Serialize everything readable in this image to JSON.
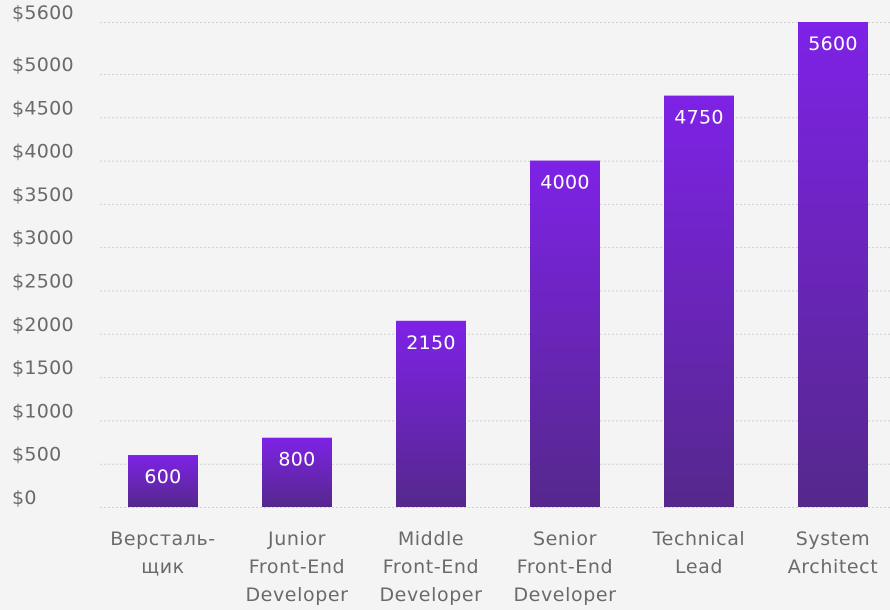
{
  "chart_data": {
    "type": "bar",
    "title": "",
    "xlabel": "",
    "ylabel": "",
    "categories": [
      [
        "Версталь-",
        "щик"
      ],
      [
        "Junior",
        "Front-End",
        "Developer"
      ],
      [
        "Middle",
        "Front-End",
        "Developer"
      ],
      [
        "Senior",
        "Front-End",
        "Developer"
      ],
      [
        "Technical",
        "Lead"
      ],
      [
        "System",
        "Architect"
      ]
    ],
    "values": [
      600,
      800,
      2150,
      4000,
      4750,
      5600
    ],
    "data_labels": [
      "600",
      "800",
      "2150",
      "4000",
      "4750",
      "5600"
    ],
    "ylim": [
      0,
      5600
    ],
    "yticks": [
      0,
      500,
      1000,
      1500,
      2000,
      2500,
      3000,
      3500,
      4000,
      4500,
      5000,
      5600
    ],
    "ytick_labels": [
      "$0",
      "$500",
      "$1000",
      "$1500",
      "$2000",
      "$2500",
      "$3000",
      "$3500",
      "$4000",
      "$4500",
      "$5000",
      "$5600"
    ],
    "grid": true,
    "legend": "none",
    "colors": {
      "bar_top": "#7e22e6",
      "bar_bottom": "#55288c",
      "grid": "#cfcfcf",
      "text": "#6a6a6a",
      "background": "#f4f4f4"
    }
  }
}
